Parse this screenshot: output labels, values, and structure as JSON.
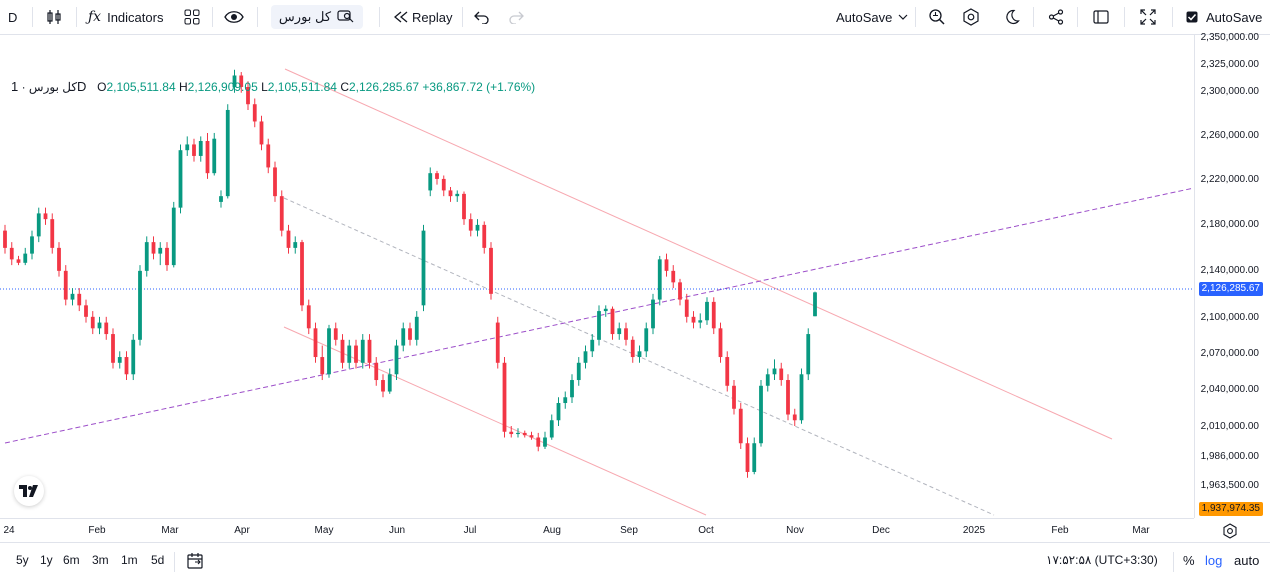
{
  "toolbar": {
    "symbol_letter": "D",
    "indicators_label": "Indicators",
    "symbol_name": "کل بورس",
    "replay_label": "Replay",
    "autosave_label": "AutoSave",
    "autosave_check_label": "AutoSave"
  },
  "legend": {
    "symbol": "کل بورس",
    "interval": "1D",
    "open_label": "O",
    "open": "2,105,511.84",
    "high_label": "H",
    "high": "2,126,909.05",
    "low_label": "L",
    "low": "2,105,511.84",
    "close_label": "C",
    "close": "2,126,285.67",
    "change": "+36,867.72 (+1.76%)"
  },
  "price_axis": {
    "labels": [
      "2,350,000.00",
      "2,325,000.00",
      "2,300,000.00",
      "2,260,000.00",
      "2,220,000.00",
      "2,180,000.00",
      "2,140,000.00",
      "2,100,000.00",
      "2,070,000.00",
      "2,040,000.00",
      "2,010,000.00",
      "1,986,000.00",
      "1,963,500.00"
    ],
    "current_price": "2,126,285.67",
    "low_marker": "1,937,974.35"
  },
  "time_axis": {
    "labels": [
      "24",
      "Feb",
      "Mar",
      "Apr",
      "May",
      "Jun",
      "Jul",
      "Aug",
      "Sep",
      "Oct",
      "Nov",
      "Dec",
      "2025",
      "Feb",
      "Mar"
    ]
  },
  "bottom": {
    "ranges": [
      "5y",
      "1y",
      "6m",
      "3m",
      "1m",
      "5d"
    ],
    "clock": "۱۷:۵۲:۵۸ (UTC+3:30)",
    "percent_label": "%",
    "log_label": "log",
    "auto_label": "auto"
  },
  "colors": {
    "up": "#089981",
    "down": "#f23645",
    "channel": "#f7a8b0",
    "trendline": "#9c4ec9",
    "midline": "#b2b5be",
    "price_line": "#2962ff"
  },
  "chart_data": {
    "type": "candlestick",
    "symbol": "کل بورس",
    "interval": "1D",
    "ohlc": [
      {
        "o": 2180000,
        "h": 2185000,
        "l": 2160000,
        "c": 2165000
      },
      {
        "o": 2165000,
        "h": 2170000,
        "l": 2150000,
        "c": 2155000
      },
      {
        "o": 2155000,
        "h": 2158000,
        "l": 2150000,
        "c": 2152000
      },
      {
        "o": 2152000,
        "h": 2165000,
        "l": 2150000,
        "c": 2160000
      },
      {
        "o": 2160000,
        "h": 2180000,
        "l": 2155000,
        "c": 2175000
      },
      {
        "o": 2175000,
        "h": 2200000,
        "l": 2170000,
        "c": 2195000
      },
      {
        "o": 2195000,
        "h": 2200000,
        "l": 2185000,
        "c": 2190000
      },
      {
        "o": 2190000,
        "h": 2195000,
        "l": 2160000,
        "c": 2165000
      },
      {
        "o": 2165000,
        "h": 2170000,
        "l": 2140000,
        "c": 2145000
      },
      {
        "o": 2145000,
        "h": 2150000,
        "l": 2115000,
        "c": 2120000
      },
      {
        "o": 2120000,
        "h": 2130000,
        "l": 2115000,
        "c": 2125000
      },
      {
        "o": 2125000,
        "h": 2130000,
        "l": 2110000,
        "c": 2115000
      },
      {
        "o": 2115000,
        "h": 2120000,
        "l": 2100000,
        "c": 2105000
      },
      {
        "o": 2105000,
        "h": 2110000,
        "l": 2090000,
        "c": 2095000
      },
      {
        "o": 2095000,
        "h": 2105000,
        "l": 2090000,
        "c": 2100000
      },
      {
        "o": 2100000,
        "h": 2105000,
        "l": 2085000,
        "c": 2090000
      },
      {
        "o": 2090000,
        "h": 2095000,
        "l": 2060000,
        "c": 2065000
      },
      {
        "o": 2065000,
        "h": 2075000,
        "l": 2060000,
        "c": 2070000
      },
      {
        "o": 2070000,
        "h": 2075000,
        "l": 2050000,
        "c": 2055000
      },
      {
        "o": 2055000,
        "h": 2090000,
        "l": 2050000,
        "c": 2085000
      },
      {
        "o": 2085000,
        "h": 2150000,
        "l": 2080000,
        "c": 2145000
      },
      {
        "o": 2145000,
        "h": 2175000,
        "l": 2140000,
        "c": 2170000
      },
      {
        "o": 2170000,
        "h": 2175000,
        "l": 2155000,
        "c": 2160000
      },
      {
        "o": 2160000,
        "h": 2170000,
        "l": 2150000,
        "c": 2165000
      },
      {
        "o": 2165000,
        "h": 2170000,
        "l": 2145000,
        "c": 2150000
      },
      {
        "o": 2150000,
        "h": 2205000,
        "l": 2148000,
        "c": 2200000
      },
      {
        "o": 2200000,
        "h": 2255000,
        "l": 2195000,
        "c": 2250000
      },
      {
        "o": 2250000,
        "h": 2262000,
        "l": 2245000,
        "c": 2255000
      },
      {
        "o": 2255000,
        "h": 2260000,
        "l": 2240000,
        "c": 2245000
      },
      {
        "o": 2245000,
        "h": 2262000,
        "l": 2240000,
        "c": 2258000
      },
      {
        "o": 2258000,
        "h": 2265000,
        "l": 2225000,
        "c": 2230000
      },
      {
        "o": 2230000,
        "h": 2265000,
        "l": 2228000,
        "c": 2260000
      },
      {
        "o": 2205000,
        "h": 2215000,
        "l": 2200000,
        "c": 2210000
      },
      {
        "o": 2210000,
        "h": 2290000,
        "l": 2208000,
        "c": 2285000
      },
      {
        "o": 2305000,
        "h": 2320000,
        "l": 2300000,
        "c": 2315000
      },
      {
        "o": 2315000,
        "h": 2318000,
        "l": 2300000,
        "c": 2305000
      },
      {
        "o": 2305000,
        "h": 2310000,
        "l": 2285000,
        "c": 2290000
      },
      {
        "o": 2290000,
        "h": 2295000,
        "l": 2270000,
        "c": 2275000
      },
      {
        "o": 2275000,
        "h": 2280000,
        "l": 2250000,
        "c": 2255000
      },
      {
        "o": 2255000,
        "h": 2260000,
        "l": 2230000,
        "c": 2235000
      },
      {
        "o": 2235000,
        "h": 2240000,
        "l": 2205000,
        "c": 2210000
      },
      {
        "o": 2210000,
        "h": 2215000,
        "l": 2175000,
        "c": 2180000
      },
      {
        "o": 2180000,
        "h": 2185000,
        "l": 2160000,
        "c": 2165000
      },
      {
        "o": 2165000,
        "h": 2175000,
        "l": 2160000,
        "c": 2170000
      },
      {
        "o": 2170000,
        "h": 2172000,
        "l": 2110000,
        "c": 2115000
      },
      {
        "o": 2115000,
        "h": 2120000,
        "l": 2090000,
        "c": 2095000
      },
      {
        "o": 2095000,
        "h": 2100000,
        "l": 2065000,
        "c": 2070000
      },
      {
        "o": 2070000,
        "h": 2080000,
        "l": 2050000,
        "c": 2055000
      },
      {
        "o": 2055000,
        "h": 2098000,
        "l": 2052000,
        "c": 2095000
      },
      {
        "o": 2095000,
        "h": 2100000,
        "l": 2080000,
        "c": 2085000
      },
      {
        "o": 2085000,
        "h": 2090000,
        "l": 2060000,
        "c": 2065000
      },
      {
        "o": 2065000,
        "h": 2085000,
        "l": 2060000,
        "c": 2080000
      },
      {
        "o": 2080000,
        "h": 2085000,
        "l": 2060000,
        "c": 2065000
      },
      {
        "o": 2065000,
        "h": 2090000,
        "l": 2060000,
        "c": 2085000
      },
      {
        "o": 2085000,
        "h": 2090000,
        "l": 2060000,
        "c": 2065000
      },
      {
        "o": 2065000,
        "h": 2070000,
        "l": 2045000,
        "c": 2050000
      },
      {
        "o": 2050000,
        "h": 2055000,
        "l": 2035000,
        "c": 2040000
      },
      {
        "o": 2040000,
        "h": 2060000,
        "l": 2038000,
        "c": 2055000
      },
      {
        "o": 2055000,
        "h": 2085000,
        "l": 2050000,
        "c": 2080000
      },
      {
        "o": 2080000,
        "h": 2100000,
        "l": 2075000,
        "c": 2095000
      },
      {
        "o": 2095000,
        "h": 2100000,
        "l": 2080000,
        "c": 2085000
      },
      {
        "o": 2085000,
        "h": 2110000,
        "l": 2080000,
        "c": 2105000
      },
      {
        "o": 2115000,
        "h": 2185000,
        "l": 2110000,
        "c": 2180000
      },
      {
        "o": 2215000,
        "h": 2235000,
        "l": 2210000,
        "c": 2230000
      },
      {
        "o": 2230000,
        "h": 2232000,
        "l": 2220000,
        "c": 2225000
      },
      {
        "o": 2225000,
        "h": 2228000,
        "l": 2210000,
        "c": 2215000
      },
      {
        "o": 2215000,
        "h": 2218000,
        "l": 2205000,
        "c": 2210000
      },
      {
        "o": 2210000,
        "h": 2215000,
        "l": 2205000,
        "c": 2212000
      },
      {
        "o": 2212000,
        "h": 2214000,
        "l": 2185000,
        "c": 2190000
      },
      {
        "o": 2190000,
        "h": 2195000,
        "l": 2175000,
        "c": 2180000
      },
      {
        "o": 2180000,
        "h": 2190000,
        "l": 2175000,
        "c": 2185000
      },
      {
        "o": 2185000,
        "h": 2188000,
        "l": 2160000,
        "c": 2165000
      },
      {
        "o": 2165000,
        "h": 2170000,
        "l": 2120000,
        "c": 2125000
      },
      {
        "o": 2100000,
        "h": 2105000,
        "l": 2060000,
        "c": 2065000
      },
      {
        "o": 2065000,
        "h": 2070000,
        "l": 2000000,
        "c": 2005000
      },
      {
        "o": 2005000,
        "h": 2010000,
        "l": 2000000,
        "c": 2003000
      },
      {
        "o": 2003000,
        "h": 2008000,
        "l": 2000000,
        "c": 2004000
      },
      {
        "o": 2004000,
        "h": 2006000,
        "l": 2000000,
        "c": 2002000
      },
      {
        "o": 2002000,
        "h": 2005000,
        "l": 1998000,
        "c": 2000000
      },
      {
        "o": 2000000,
        "h": 2004000,
        "l": 1988000,
        "c": 1992000
      },
      {
        "o": 1992000,
        "h": 2005000,
        "l": 1990000,
        "c": 2000000
      },
      {
        "o": 2000000,
        "h": 2020000,
        "l": 1998000,
        "c": 2015000
      },
      {
        "o": 2015000,
        "h": 2035000,
        "l": 2010000,
        "c": 2030000
      },
      {
        "o": 2030000,
        "h": 2040000,
        "l": 2025000,
        "c": 2035000
      },
      {
        "o": 2035000,
        "h": 2055000,
        "l": 2030000,
        "c": 2050000
      },
      {
        "o": 2050000,
        "h": 2070000,
        "l": 2045000,
        "c": 2065000
      },
      {
        "o": 2065000,
        "h": 2080000,
        "l": 2060000,
        "c": 2075000
      },
      {
        "o": 2075000,
        "h": 2090000,
        "l": 2070000,
        "c": 2085000
      },
      {
        "o": 2085000,
        "h": 2115000,
        "l": 2080000,
        "c": 2110000
      },
      {
        "o": 2110000,
        "h": 2115000,
        "l": 2105000,
        "c": 2112000
      },
      {
        "o": 2112000,
        "h": 2114000,
        "l": 2085000,
        "c": 2090000
      },
      {
        "o": 2090000,
        "h": 2100000,
        "l": 2085000,
        "c": 2095000
      },
      {
        "o": 2095000,
        "h": 2100000,
        "l": 2080000,
        "c": 2085000
      },
      {
        "o": 2085000,
        "h": 2088000,
        "l": 2065000,
        "c": 2070000
      },
      {
        "o": 2070000,
        "h": 2080000,
        "l": 2065000,
        "c": 2075000
      },
      {
        "o": 2075000,
        "h": 2100000,
        "l": 2070000,
        "c": 2095000
      },
      {
        "o": 2095000,
        "h": 2125000,
        "l": 2090000,
        "c": 2120000
      },
      {
        "o": 2120000,
        "h": 2158000,
        "l": 2115000,
        "c": 2155000
      },
      {
        "o": 2155000,
        "h": 2160000,
        "l": 2140000,
        "c": 2145000
      },
      {
        "o": 2145000,
        "h": 2150000,
        "l": 2130000,
        "c": 2135000
      },
      {
        "o": 2135000,
        "h": 2138000,
        "l": 2115000,
        "c": 2120000
      },
      {
        "o": 2120000,
        "h": 2125000,
        "l": 2100000,
        "c": 2105000
      },
      {
        "o": 2105000,
        "h": 2110000,
        "l": 2095000,
        "c": 2100000
      },
      {
        "o": 2100000,
        "h": 2108000,
        "l": 2095000,
        "c": 2102000
      },
      {
        "o": 2102000,
        "h": 2122000,
        "l": 2098000,
        "c": 2118000
      },
      {
        "o": 2118000,
        "h": 2122000,
        "l": 2090000,
        "c": 2095000
      },
      {
        "o": 2095000,
        "h": 2100000,
        "l": 2065000,
        "c": 2070000
      },
      {
        "o": 2070000,
        "h": 2075000,
        "l": 2040000,
        "c": 2045000
      },
      {
        "o": 2045000,
        "h": 2050000,
        "l": 2020000,
        "c": 2025000
      },
      {
        "o": 2025000,
        "h": 2030000,
        "l": 1990000,
        "c": 1995000
      },
      {
        "o": 1995000,
        "h": 2000000,
        "l": 1965000,
        "c": 1970000
      },
      {
        "o": 1970000,
        "h": 2000000,
        "l": 1968000,
        "c": 1995000
      },
      {
        "o": 1995000,
        "h": 2050000,
        "l": 1992000,
        "c": 2045000
      },
      {
        "o": 2045000,
        "h": 2060000,
        "l": 2040000,
        "c": 2055000
      },
      {
        "o": 2055000,
        "h": 2068000,
        "l": 2050000,
        "c": 2060000
      },
      {
        "o": 2060000,
        "h": 2065000,
        "l": 2045000,
        "c": 2050000
      },
      {
        "o": 2050000,
        "h": 2055000,
        "l": 2015000,
        "c": 2020000
      },
      {
        "o": 2020000,
        "h": 2025000,
        "l": 2010000,
        "c": 2015000
      },
      {
        "o": 2015000,
        "h": 2060000,
        "l": 2012000,
        "c": 2055000
      },
      {
        "o": 2055000,
        "h": 2095000,
        "l": 2050000,
        "c": 2090000
      },
      {
        "o": 2105512,
        "h": 2126909,
        "l": 2105512,
        "c": 2126286
      }
    ],
    "price_range": [
      1940000,
      2355000
    ],
    "log_scale": false,
    "drawings": [
      "descending channel",
      "ascending trendline",
      "channel midline"
    ],
    "xlabel": "",
    "ylabel": ""
  }
}
